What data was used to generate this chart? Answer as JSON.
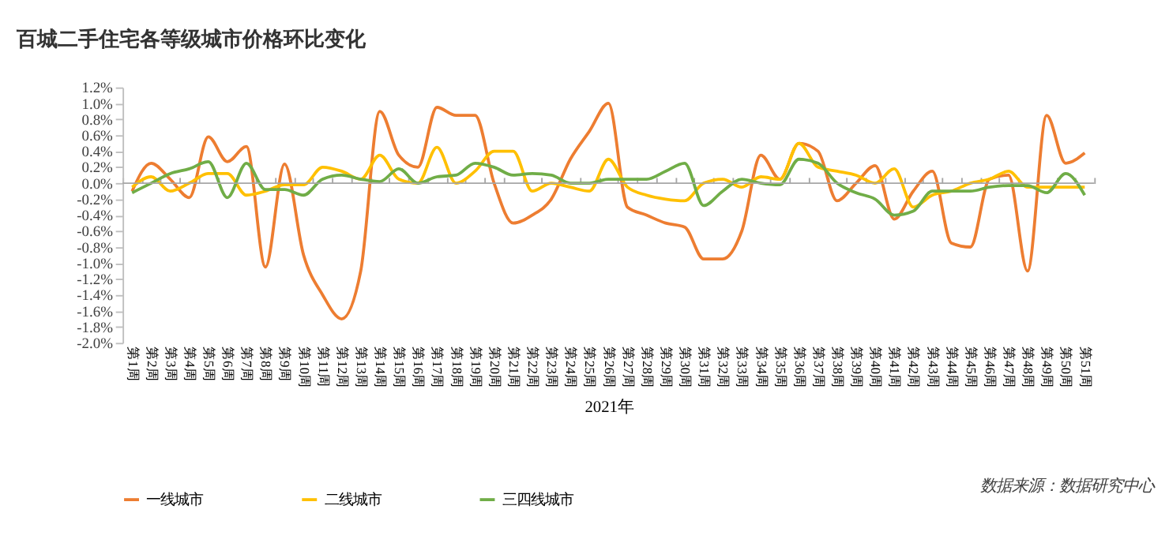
{
  "chart_data": {
    "type": "line",
    "title": "百城二手住宅各等级城市价格环比变化",
    "xlabel": "2021年",
    "categories": [
      "第1周",
      "第2周",
      "第3周",
      "第4周",
      "第5周",
      "第6周",
      "第7周",
      "第8周",
      "第9周",
      "第10周",
      "第11周",
      "第12周",
      "第13周",
      "第14周",
      "第15周",
      "第16周",
      "第17周",
      "第18周",
      "第19周",
      "第20周",
      "第21周",
      "第22周",
      "第23周",
      "第24周",
      "第25周",
      "第26周",
      "第27周",
      "第28周",
      "第29周",
      "第30周",
      "第31周",
      "第32周",
      "第33周",
      "第34周",
      "第35周",
      "第36周",
      "第37周",
      "第38周",
      "第39周",
      "第40周",
      "第41周",
      "第42周",
      "第43周",
      "第44周",
      "第45周",
      "第46周",
      "第47周",
      "第48周",
      "第49周",
      "第50周",
      "第51周"
    ],
    "series": [
      {
        "name": "一线城市",
        "color": "#ed7d31",
        "values": [
          -0.1,
          0.25,
          0.05,
          -0.18,
          0.58,
          0.27,
          0.46,
          -1.05,
          0.24,
          -0.9,
          -1.4,
          -1.7,
          -1.1,
          0.9,
          0.35,
          0.2,
          0.95,
          0.85,
          0.85,
          0.0,
          -0.5,
          -0.4,
          -0.2,
          0.3,
          0.65,
          1.0,
          -0.3,
          -0.4,
          -0.5,
          -0.55,
          -0.95,
          -0.95,
          -0.6,
          0.35,
          0.05,
          0.5,
          0.4,
          -0.22,
          0.0,
          0.22,
          -0.45,
          -0.1,
          0.15,
          -0.75,
          -0.8,
          0.05,
          0.1,
          -1.1,
          0.85,
          0.25,
          0.38
        ]
      },
      {
        "name": "二线城市",
        "color": "#ffc000",
        "values": [
          -0.05,
          0.08,
          -0.1,
          0.0,
          0.12,
          0.12,
          -0.15,
          -0.1,
          -0.02,
          -0.02,
          0.2,
          0.15,
          0.05,
          0.35,
          0.05,
          0.0,
          0.45,
          0.0,
          0.15,
          0.4,
          0.4,
          -0.1,
          0.0,
          -0.05,
          -0.1,
          0.3,
          -0.05,
          -0.15,
          -0.2,
          -0.22,
          0.0,
          0.05,
          -0.05,
          0.08,
          0.05,
          0.5,
          0.2,
          0.15,
          0.1,
          0.0,
          0.18,
          -0.3,
          -0.15,
          -0.1,
          0.0,
          0.05,
          0.15,
          -0.05,
          -0.05,
          -0.05,
          -0.05
        ]
      },
      {
        "name": "三四线城市",
        "color": "#70ad47",
        "values": [
          -0.12,
          0.0,
          0.12,
          0.18,
          0.27,
          -0.18,
          0.25,
          -0.08,
          -0.08,
          -0.15,
          0.05,
          0.1,
          0.05,
          0.02,
          0.18,
          0.0,
          0.08,
          0.1,
          0.25,
          0.2,
          0.1,
          0.12,
          0.1,
          0.0,
          0.0,
          0.05,
          0.05,
          0.05,
          0.15,
          0.25,
          -0.28,
          -0.1,
          0.05,
          0.0,
          -0.02,
          0.3,
          0.25,
          0.0,
          -0.12,
          -0.2,
          -0.4,
          -0.35,
          -0.1,
          -0.1,
          -0.1,
          -0.05,
          -0.03,
          -0.03,
          -0.12,
          0.12,
          -0.15
        ]
      }
    ],
    "ylim": [
      -2.0,
      1.2
    ],
    "yticks": [
      {
        "value": -2.0,
        "label": "-2.0%"
      },
      {
        "value": -1.8,
        "label": "-1.8%"
      },
      {
        "value": -1.6,
        "label": "-1.6%"
      },
      {
        "value": -1.4,
        "label": "-1.4%"
      },
      {
        "value": -1.2,
        "label": "-1.2%"
      },
      {
        "value": -1.0,
        "label": "-1.0%"
      },
      {
        "value": -0.8,
        "label": "-0.8%"
      },
      {
        "value": -0.6,
        "label": "-0.6%"
      },
      {
        "value": -0.4,
        "label": "-0.4%"
      },
      {
        "value": -0.2,
        "label": "-0.2%"
      },
      {
        "value": 0.0,
        "label": "0.0%"
      },
      {
        "value": 0.2,
        "label": "0.2%"
      },
      {
        "value": 0.4,
        "label": "0.4%"
      },
      {
        "value": 0.6,
        "label": "0.6%"
      },
      {
        "value": 0.8,
        "label": "0.8%"
      },
      {
        "value": 1.0,
        "label": "1.0%"
      },
      {
        "value": 1.2,
        "label": "1.2%"
      }
    ],
    "ref_lines": [
      {
        "axis": "y",
        "value": 0,
        "color": "#a6a6a6",
        "line_style": "solid"
      }
    ],
    "grid": false,
    "legend": "bottom",
    "marker": "none",
    "line_style": "solid",
    "annotations": [
      "数据来源：数据研究中心"
    ]
  }
}
